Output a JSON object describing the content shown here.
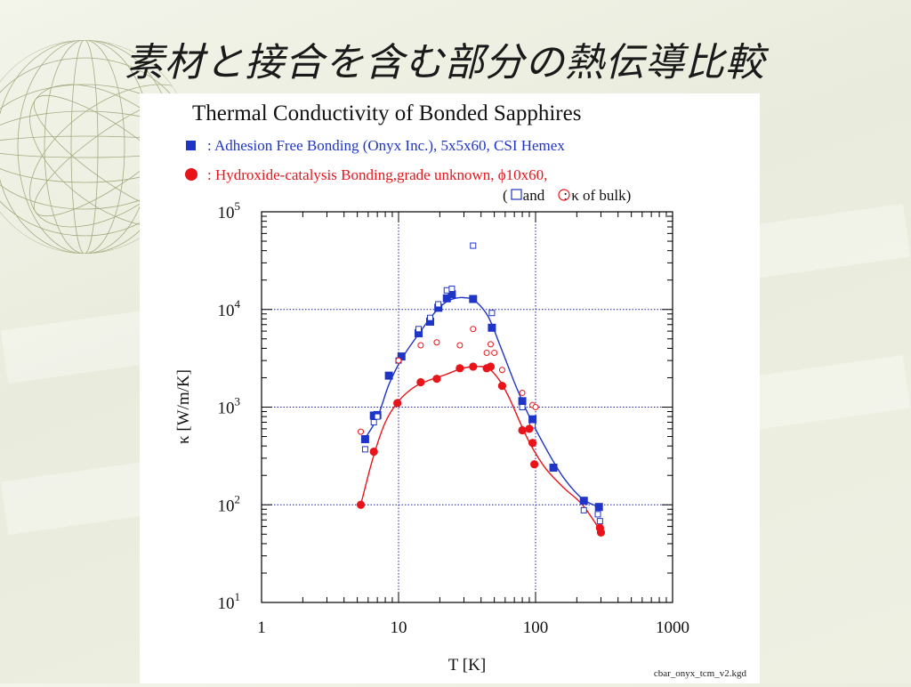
{
  "slide": {
    "title": "素材と接合を含む部分の熱伝導比較",
    "file_label": "cbar_onyx_tcm_v2.kgd"
  },
  "colors": {
    "blue": "#1f35c8",
    "red": "#e8141a",
    "grid": "#2020a0"
  },
  "chart_data": {
    "type": "scatter",
    "title": "Thermal Conductivity of Bonded Sapphires",
    "xlabel": "T [K]",
    "ylabel": "κ [W/m/K]",
    "x_scale": "log",
    "y_scale": "log",
    "xlim": [
      1,
      1000
    ],
    "ylim": [
      10,
      100000
    ],
    "x_ticks": [
      {
        "value": 1,
        "label": "1"
      },
      {
        "value": 10,
        "label": "10"
      },
      {
        "value": 100,
        "label": "100"
      },
      {
        "value": 1000,
        "label": "1000"
      }
    ],
    "y_ticks": [
      {
        "value": 10,
        "base": "10",
        "exp": "1"
      },
      {
        "value": 100,
        "base": "10",
        "exp": "2"
      },
      {
        "value": 1000,
        "base": "10",
        "exp": "3"
      },
      {
        "value": 10000,
        "base": "10",
        "exp": "4"
      },
      {
        "value": 100000,
        "base": "10",
        "exp": "5"
      }
    ],
    "grid": true,
    "legend": {
      "placement": "top",
      "entries": [
        {
          "text": ": Adhesion Free Bonding (Onyx Inc.), 5x5x60, CSI Hemex",
          "color": "#1f35c8",
          "marker": "square"
        },
        {
          "text": ": Hydroxide-catalysis Bonding,grade unknown,  ϕ10x60,",
          "color": "#e8141a",
          "marker": "circle"
        }
      ],
      "note_open": "(",
      "note_and": "and",
      "note_rest": ": κ of bulk)"
    },
    "series": [
      {
        "name": "Adhesion Free Bonding (Onyx Inc.), 5x5x60, CSI Hemex",
        "color": "#1f35c8",
        "marker": "square-filled",
        "x": [
          5.7,
          6.6,
          7.0,
          8.5,
          10.5,
          14.0,
          17.0,
          19.5,
          22.5,
          24.5,
          35,
          48,
          80,
          95,
          135,
          225,
          290
        ],
        "y": [
          470,
          820,
          830,
          2100,
          3300,
          5700,
          7500,
          10400,
          13000,
          14300,
          12800,
          6500,
          1150,
          750,
          240,
          110,
          95
        ]
      },
      {
        "name": "bulk (Adhesion Free Bonding)",
        "color": "#1f35c8",
        "marker": "square-open",
        "x": [
          5.7,
          6.6,
          7.0,
          10.0,
          14.0,
          17.0,
          19.5,
          22.5,
          24.5,
          35,
          48,
          80,
          95,
          225,
          285,
          295
        ],
        "y": [
          370,
          700,
          800,
          3000,
          6300,
          8200,
          11300,
          15700,
          16300,
          45000,
          9200,
          1000,
          650,
          88,
          80,
          68
        ]
      },
      {
        "name": "Hydroxide-catalysis Bonding,grade unknown,  ϕ10x60,",
        "color": "#e8141a",
        "marker": "circle-filled",
        "x": [
          5.3,
          6.6,
          9.8,
          14.5,
          19.0,
          28,
          35,
          44,
          47,
          57,
          80,
          90,
          95,
          98,
          295,
          300
        ],
        "y": [
          100,
          350,
          1100,
          1800,
          1950,
          2500,
          2600,
          2500,
          2600,
          1650,
          580,
          600,
          430,
          260,
          58,
          52
        ]
      },
      {
        "name": "bulk (Hydroxide-catalysis Bonding)",
        "color": "#e8141a",
        "marker": "circle-open",
        "x": [
          5.3,
          10.0,
          14.5,
          19.0,
          28,
          35,
          44,
          47,
          50,
          57,
          80,
          95,
          100
        ],
        "y": [
          560,
          3000,
          4300,
          4600,
          4300,
          6300,
          3600,
          4400,
          3600,
          2400,
          1400,
          1050,
          1000
        ]
      }
    ],
    "fits": [
      {
        "color": "#1f35c8",
        "x": [
          5.7,
          7,
          8.5,
          10.5,
          14,
          18,
          22,
          26,
          30,
          36,
          45,
          55,
          70,
          90,
          120,
          160,
          220,
          290
        ],
        "y": [
          480,
          780,
          1700,
          3100,
          5600,
          9000,
          11800,
          13000,
          13200,
          12300,
          8500,
          4300,
          1800,
          800,
          370,
          190,
          115,
          95
        ]
      },
      {
        "color": "#e8141a",
        "x": [
          5.3,
          6.5,
          8,
          10,
          13,
          17,
          22,
          28,
          35,
          45,
          55,
          65,
          80,
          95,
          120,
          160,
          220,
          295
        ],
        "y": [
          100,
          300,
          700,
          1150,
          1600,
          1900,
          2150,
          2450,
          2600,
          2500,
          1850,
          1200,
          620,
          380,
          230,
          150,
          100,
          55
        ]
      }
    ]
  }
}
